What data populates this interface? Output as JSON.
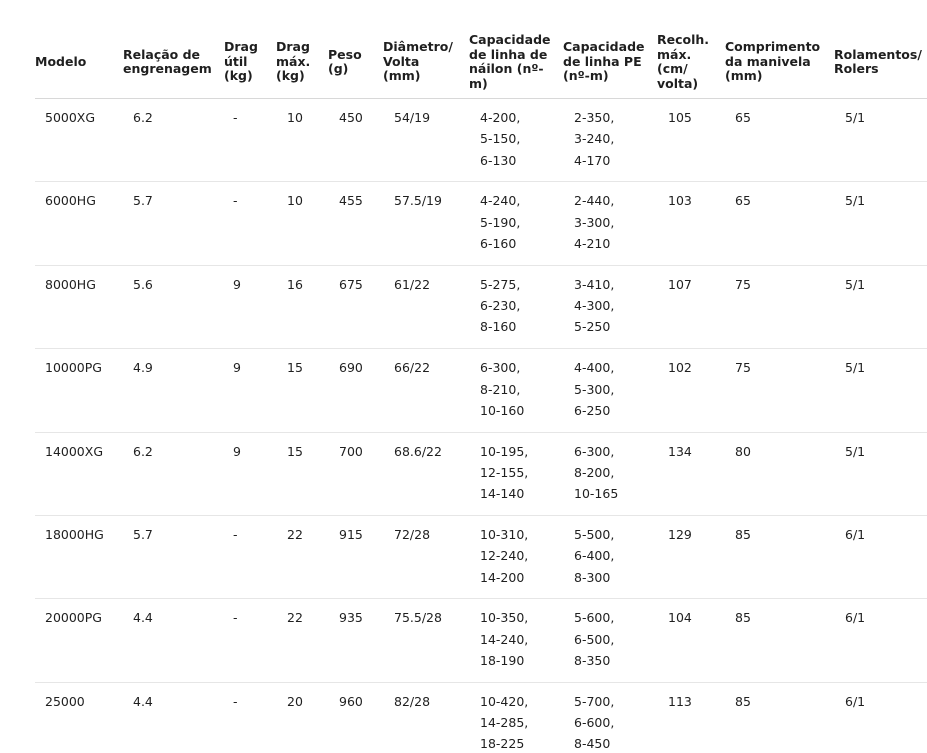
{
  "table": {
    "headers": [
      [
        "Modelo"
      ],
      [
        "Relação de",
        "engrenagem"
      ],
      [
        "Drag",
        "útil",
        "(kg)"
      ],
      [
        "Drag",
        "máx.",
        "(kg)"
      ],
      [
        "Peso",
        "(g)"
      ],
      [
        "Diâmetro/",
        "Volta",
        "(mm)"
      ],
      [
        "Capacidade",
        "de linha de",
        "náilon (nº-",
        "m)"
      ],
      [
        "Capacidade",
        "de linha PE",
        "(nº-m)"
      ],
      [
        "Recolh.",
        "máx.",
        "(cm/",
        "volta)"
      ],
      [
        "Comprimento",
        "da manivela",
        "(mm)"
      ],
      [
        "Rolamentos/",
        "Rolers"
      ]
    ],
    "rows": [
      [
        "5000XG",
        "6.2",
        "-",
        "10",
        "450",
        "54/19",
        [
          "4-200,",
          "5-150,",
          "6-130"
        ],
        [
          "2-350,",
          "3-240,",
          "4-170"
        ],
        "105",
        "65",
        "5/1"
      ],
      [
        "6000HG",
        "5.7",
        "-",
        "10",
        "455",
        "57.5/19",
        [
          "4-240,",
          "5-190,",
          "6-160"
        ],
        [
          "2-440,",
          "3-300,",
          "4-210"
        ],
        "103",
        "65",
        "5/1"
      ],
      [
        "8000HG",
        "5.6",
        "9",
        "16",
        "675",
        "61/22",
        [
          "5-275,",
          "6-230,",
          "8-160"
        ],
        [
          "3-410,",
          "4-300,",
          "5-250"
        ],
        "107",
        "75",
        "5/1"
      ],
      [
        "10000PG",
        "4.9",
        "9",
        "15",
        "690",
        "66/22",
        [
          "6-300,",
          "8-210,",
          "10-160"
        ],
        [
          "4-400,",
          "5-300,",
          "6-250"
        ],
        "102",
        "75",
        "5/1"
      ],
      [
        "14000XG",
        "6.2",
        "9",
        "15",
        "700",
        "68.6/22",
        [
          "10-195,",
          "12-155,",
          "14-140"
        ],
        [
          "6-300,",
          "8-200,",
          "10-165"
        ],
        "134",
        "80",
        "5/1"
      ],
      [
        "18000HG",
        "5.7",
        "-",
        "22",
        "915",
        "72/28",
        [
          "10-310,",
          "12-240,",
          "14-200"
        ],
        [
          "5-500,",
          "6-400,",
          "8-300"
        ],
        "129",
        "85",
        "6/1"
      ],
      [
        "20000PG",
        "4.4",
        "-",
        "22",
        "935",
        "75.5/28",
        [
          "10-350,",
          "14-240,",
          "18-190"
        ],
        [
          "5-600,",
          "6-500,",
          "8-350"
        ],
        "104",
        "85",
        "6/1"
      ],
      [
        "25000",
        "4.4",
        "-",
        "20",
        "960",
        "82/28",
        [
          "10-420,",
          "14-285,",
          "18-225"
        ],
        [
          "5-700,",
          "6-600,",
          "8-450"
        ],
        "113",
        "85",
        "6/1"
      ]
    ]
  }
}
